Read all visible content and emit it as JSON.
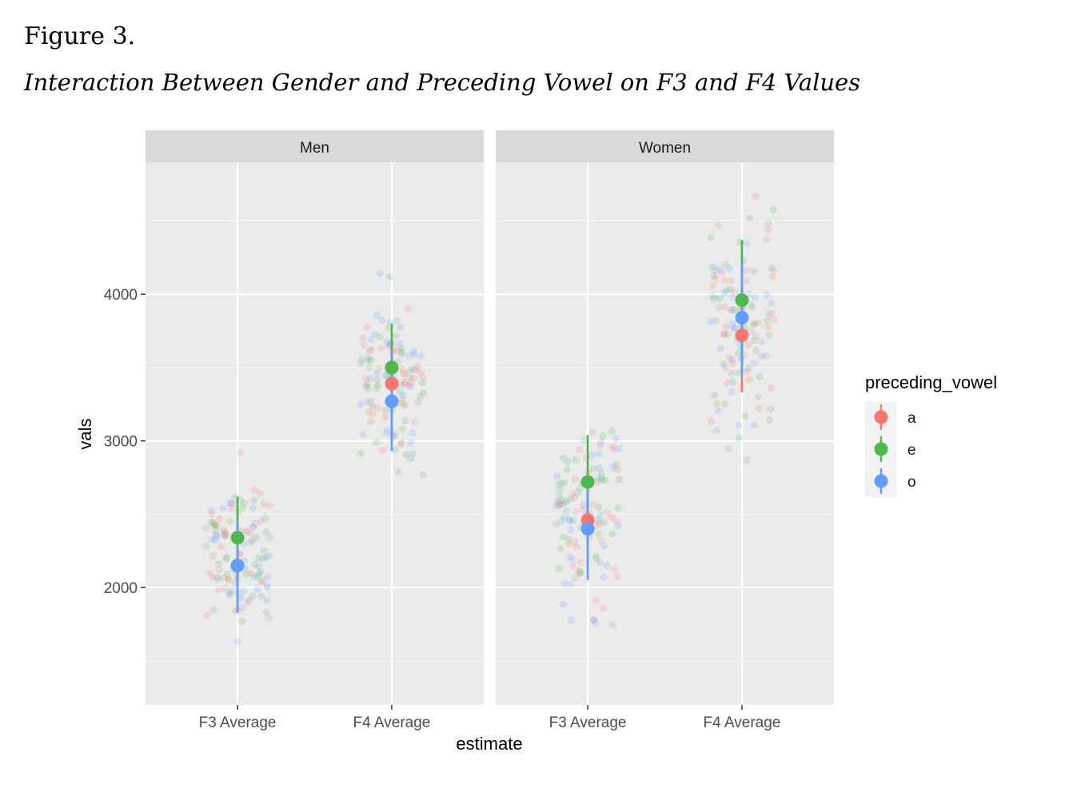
{
  "figure": {
    "label": "Figure 3.",
    "title": "Interaction Between Gender and Preceding Vowel on F3 and F4 Values"
  },
  "chart_data": {
    "type": "scatter",
    "xlabel": "estimate",
    "ylabel": "vals",
    "ylim": [
      1200,
      4900
    ],
    "y_ticks": [
      2000,
      3000,
      4000
    ],
    "y_tick_labels": [
      "2000",
      "3000",
      "4000"
    ],
    "grid": true,
    "categories": [
      "F3 Average",
      "F4 Average"
    ],
    "panels": [
      {
        "name": "Men",
        "summary": [
          {
            "vowel": "a",
            "category": "F3 Average",
            "mean": 2150,
            "low": 1830,
            "high": 2450
          },
          {
            "vowel": "e",
            "category": "F3 Average",
            "mean": 2340,
            "low": 2040,
            "high": 2620
          },
          {
            "vowel": "o",
            "category": "F3 Average",
            "mean": 2150,
            "low": 1830,
            "high": 2450
          },
          {
            "vowel": "a",
            "category": "F4 Average",
            "mean": 3390,
            "low": 3040,
            "high": 3720
          },
          {
            "vowel": "e",
            "category": "F4 Average",
            "mean": 3500,
            "low": 3180,
            "high": 3800
          },
          {
            "vowel": "o",
            "category": "F4 Average",
            "mean": 3270,
            "low": 2930,
            "high": 3620
          }
        ]
      },
      {
        "name": "Women",
        "summary": [
          {
            "vowel": "a",
            "category": "F3 Average",
            "mean": 2460,
            "low": 2160,
            "high": 2770
          },
          {
            "vowel": "e",
            "category": "F3 Average",
            "mean": 2720,
            "low": 2390,
            "high": 3040
          },
          {
            "vowel": "o",
            "category": "F3 Average",
            "mean": 2400,
            "low": 2050,
            "high": 2760
          },
          {
            "vowel": "a",
            "category": "F4 Average",
            "mean": 3720,
            "low": 3330,
            "high": 4080
          },
          {
            "vowel": "e",
            "category": "F4 Average",
            "mean": 3960,
            "low": 3560,
            "high": 4370
          },
          {
            "vowel": "o",
            "category": "F4 Average",
            "mean": 3840,
            "low": 3440,
            "high": 4220
          }
        ]
      }
    ],
    "raw_points_distribution": [
      {
        "panel": "Men",
        "category": "F3 Average",
        "center": 2250,
        "spread": 240,
        "min": 1250,
        "max": 3220
      },
      {
        "panel": "Men",
        "category": "F4 Average",
        "center": 3400,
        "spread": 300,
        "min": 2500,
        "max": 4180
      },
      {
        "panel": "Women",
        "category": "F3 Average",
        "center": 2520,
        "spread": 300,
        "min": 1680,
        "max": 3470
      },
      {
        "panel": "Women",
        "category": "F4 Average",
        "center": 3800,
        "spread": 370,
        "min": 2720,
        "max": 4780
      }
    ],
    "legend": {
      "title": "preceding_vowel",
      "position": "right",
      "entries": [
        {
          "label": "a",
          "color": "#F8766D"
        },
        {
          "label": "e",
          "color": "#4DB84D"
        },
        {
          "label": "o",
          "color": "#619CFF"
        }
      ]
    },
    "colors": {
      "panel_bg": "#EBEBEB",
      "grid_major": "#FFFFFF",
      "strip_bg": "#D9D9D9",
      "tick_text": "#4D4D4D"
    }
  }
}
